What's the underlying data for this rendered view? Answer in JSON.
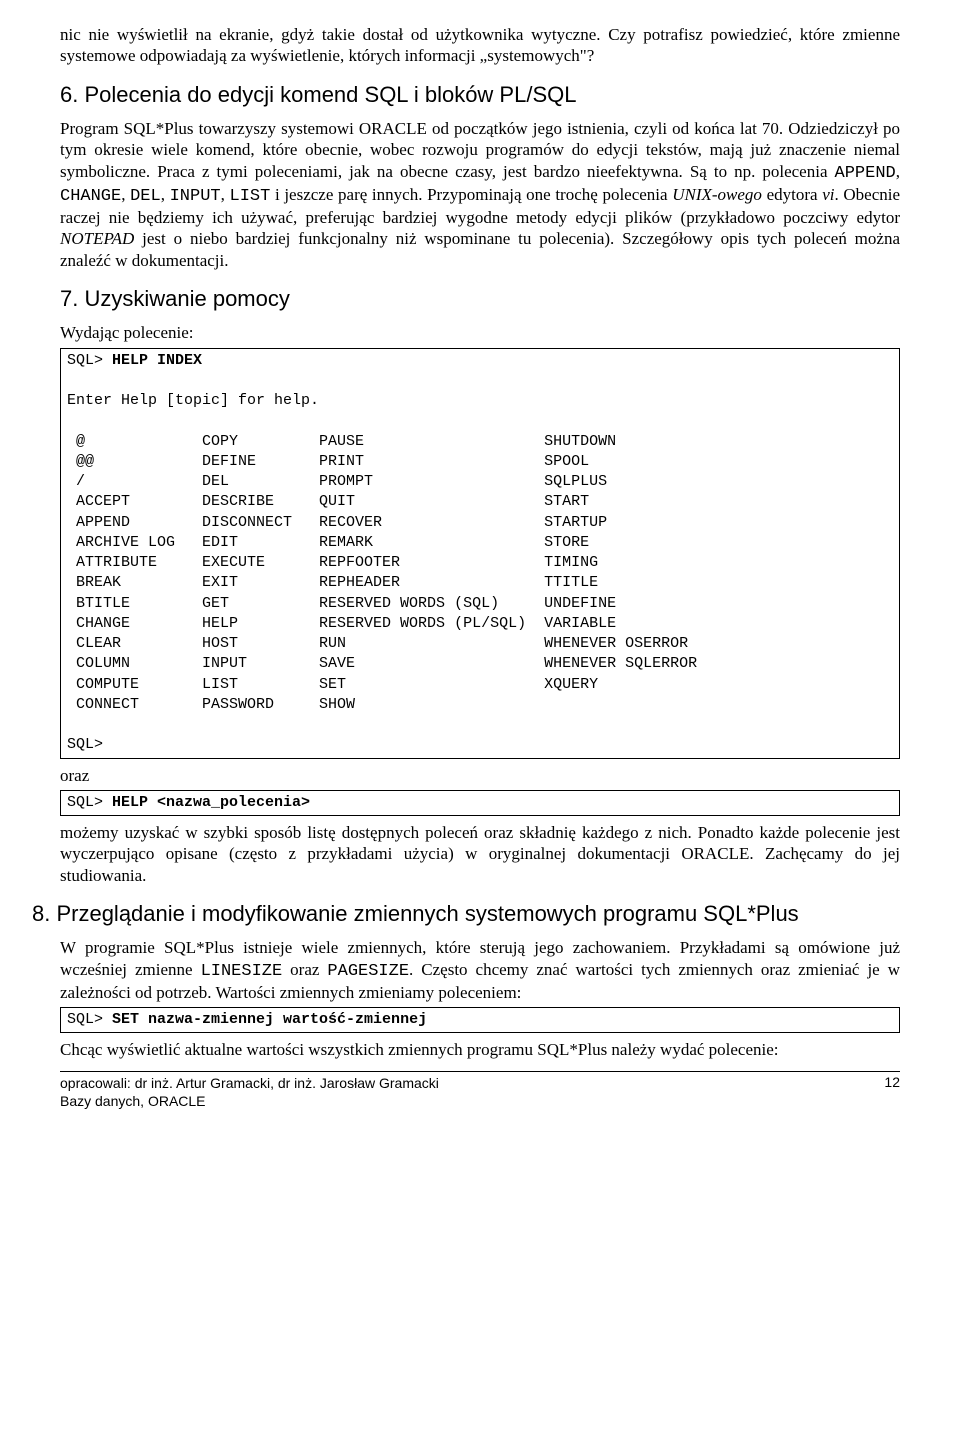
{
  "intro_para": "nic nie wyświetlił na ekranie, gdyż takie dostał od użytkownika wytyczne. Czy potrafisz powiedzieć, które zmienne systemowe odpowiadają za wyświetlenie, których informacji „systemowych\"?",
  "sec6": {
    "title": "6. Polecenia do edycji komend SQL i bloków PL/SQL",
    "p1a": "Program SQL*Plus towarzyszy systemowi ORACLE od początków jego istnienia, czyli od końca lat 70. Odziedziczył po tym okresie wiele komend, które obecnie, wobec rozwoju programów do edycji tekstów, mają już znaczenie niemal symboliczne. Praca z tymi poleceniami, jak na obecne czasy, jest bardzo nieefektywna. Są to np. polecenia ",
    "mono1": "APPEND",
    "sep": ", ",
    "mono2": "CHANGE",
    "mono3": "DEL",
    "mono4": "INPUT",
    "mono5": "LIST",
    "p1b": " i jeszcze parę innych. Przypominają one trochę polecenia ",
    "italic1": "UNIX-owego",
    "p1c": " edytora ",
    "italic2": "vi",
    "p1d": ". Obecnie raczej nie będziemy ich używać, preferując bardziej wygodne metody edycji plików (przykładowo poczciwy edytor ",
    "italic3": "NOTEPAD",
    "p1e": " jest o niebo bardziej funkcjonalny niż wspominane tu polecenia). Szczegółowy opis tych poleceń można znaleźć w dokumentacji."
  },
  "sec7": {
    "title": "7. Uzyskiwanie pomocy",
    "lead": "Wydając polecenie:",
    "code": "SQL> HELP INDEX\n\nEnter Help [topic] for help.\n\n @             COPY         PAUSE                    SHUTDOWN\n @@            DEFINE       PRINT                    SPOOL\n /             DEL          PROMPT                   SQLPLUS\n ACCEPT        DESCRIBE     QUIT                     START\n APPEND        DISCONNECT   RECOVER                  STARTUP\n ARCHIVE LOG   EDIT         REMARK                   STORE\n ATTRIBUTE     EXECUTE      REPFOOTER                TIMING\n BREAK         EXIT         REPHEADER                TTITLE\n BTITLE        GET          RESERVED WORDS (SQL)     UNDEFINE\n CHANGE        HELP         RESERVED WORDS (PL/SQL)  VARIABLE\n CLEAR         HOST         RUN                      WHENEVER OSERROR\n COLUMN        INPUT        SAVE                     WHENEVER SQLERROR\n COMPUTE       LIST         SET                      XQUERY\n CONNECT       PASSWORD     SHOW\n\nSQL>",
    "code_bold": "HELP INDEX",
    "oraz": "oraz",
    "code2_prefix": "SQL> ",
    "code2_bold": "HELP <nazwa_polecenia>",
    "after": "możemy uzyskać w szybki sposób listę dostępnych poleceń oraz składnię każdego z nich. Ponadto każde polecenie jest wyczerpująco opisane (często z przykładami użycia) w oryginalnej dokumentacji ORACLE. Zachęcamy do jej studiowania."
  },
  "sec8": {
    "title": "8. Przeglądanie i modyfikowanie zmiennych systemowych programu SQL*Plus",
    "p1a": "W programie SQL*Plus istnieje wiele zmiennych, które sterują jego zachowaniem. Przykładami są omówione już wcześniej zmienne ",
    "mono1": "LINESIZE",
    "mid": " oraz ",
    "mono2": "PAGESIZE",
    "p1b": ". Często chcemy znać wartości tych zmiennych oraz zmieniać je w zależności od potrzeb. Wartości zmiennych zmieniamy poleceniem:",
    "code_prefix": "SQL> ",
    "code_bold": "SET nazwa-zmiennej wartość-zmiennej",
    "after": "Chcąc wyświetlić aktualne wartości wszystkich zmiennych programu SQL*Plus należy wydać polecenie:"
  },
  "footer": {
    "line1": "opracowali: dr inż. Artur Gramacki, dr inż. Jarosław Gramacki",
    "line2": "Bazy danych, ORACLE",
    "page": "12"
  }
}
